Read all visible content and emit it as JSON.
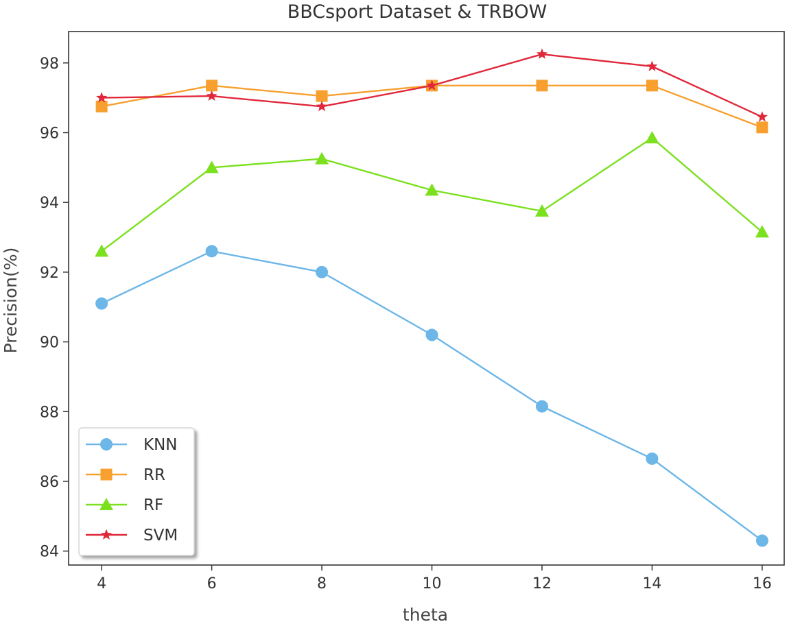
{
  "chart_data": {
    "type": "line",
    "title": "BBCsport Dataset & TRBOW",
    "xlabel": "theta",
    "ylabel": "Precision(%)",
    "x": [
      4,
      6,
      8,
      10,
      12,
      14,
      16
    ],
    "xlim": [
      3.4,
      16.4
    ],
    "ylim": [
      83.6,
      98.9
    ],
    "xticks": [
      4,
      6,
      8,
      10,
      12,
      14,
      16
    ],
    "yticks": [
      84,
      86,
      88,
      90,
      92,
      94,
      96,
      98
    ],
    "grid": false,
    "legend_position": "lower-left",
    "series": [
      {
        "name": "KNN",
        "color": "#6cb6e8",
        "marker": "circle",
        "values": [
          91.1,
          92.6,
          92.0,
          90.2,
          88.15,
          86.65,
          84.3
        ]
      },
      {
        "name": "RR",
        "color": "#f7a030",
        "marker": "square",
        "values": [
          96.75,
          97.35,
          97.05,
          97.35,
          97.35,
          97.35,
          96.15
        ]
      },
      {
        "name": "RF",
        "color": "#7be01e",
        "marker": "triangle",
        "values": [
          92.6,
          95.0,
          95.25,
          94.35,
          93.75,
          95.85,
          93.15
        ]
      },
      {
        "name": "SVM",
        "color": "#e0283a",
        "marker": "star",
        "values": [
          97.0,
          97.05,
          96.75,
          97.35,
          98.25,
          97.9,
          96.45
        ]
      }
    ]
  }
}
